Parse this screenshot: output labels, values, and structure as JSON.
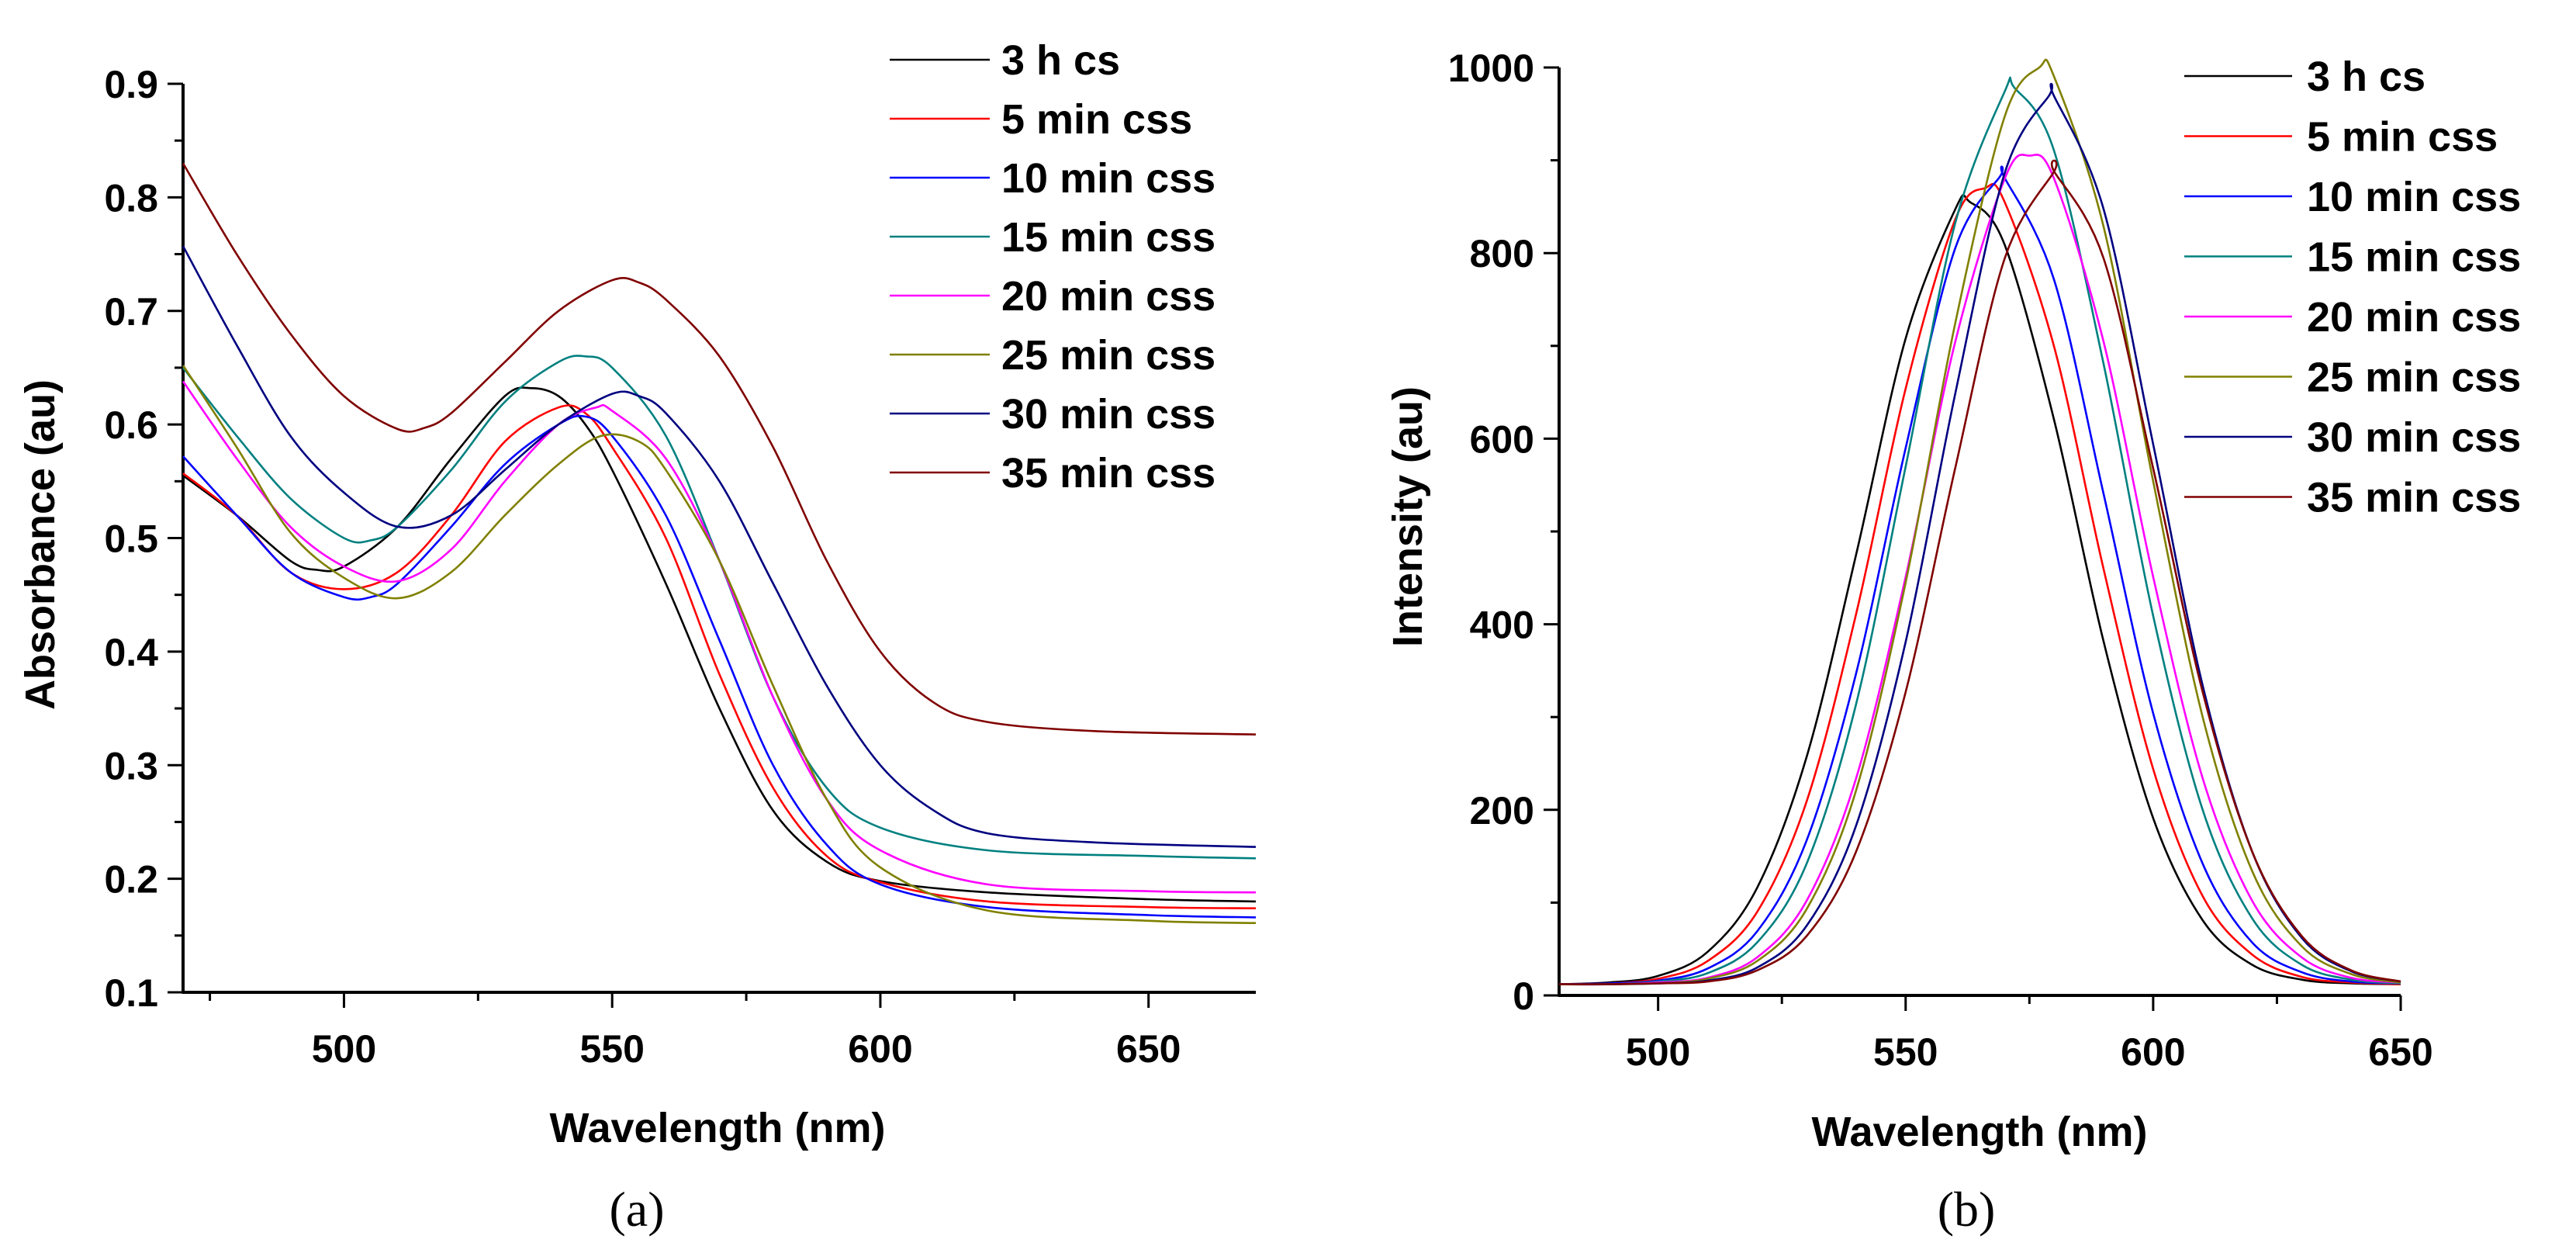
{
  "chart_data": [
    {
      "panel": "(a)",
      "type": "line",
      "xlabel": "Wavelength (nm)",
      "ylabel": "Absorbance (au)",
      "xlim": [
        470,
        670
      ],
      "ylim": [
        0.1,
        0.9
      ],
      "xticks": [
        500,
        550,
        600,
        650
      ],
      "yticks": [
        "0.1",
        "0.2",
        "0.3",
        "0.4",
        "0.5",
        "0.6",
        "0.7",
        "0.8",
        "0.9"
      ],
      "grid": false,
      "legend_position": "top-right",
      "series": [
        {
          "name": "3 h cs",
          "color": "#000000",
          "points": [
            [
              470,
              0.555
            ],
            [
              480,
              0.52
            ],
            [
              490,
              0.48
            ],
            [
              495,
              0.472
            ],
            [
              500,
              0.475
            ],
            [
              510,
              0.51
            ],
            [
              520,
              0.57
            ],
            [
              530,
              0.625
            ],
            [
              535,
              0.632
            ],
            [
              540,
              0.625
            ],
            [
              545,
              0.6
            ],
            [
              550,
              0.56
            ],
            [
              560,
              0.46
            ],
            [
              570,
              0.35
            ],
            [
              580,
              0.26
            ],
            [
              590,
              0.215
            ],
            [
              600,
              0.198
            ],
            [
              620,
              0.188
            ],
            [
              650,
              0.182
            ],
            [
              670,
              0.18
            ]
          ]
        },
        {
          "name": "5 min css",
          "color": "#ff0000",
          "points": [
            [
              470,
              0.557
            ],
            [
              480,
              0.52
            ],
            [
              490,
              0.47
            ],
            [
              500,
              0.455
            ],
            [
              510,
              0.47
            ],
            [
              520,
              0.52
            ],
            [
              530,
              0.585
            ],
            [
              540,
              0.615
            ],
            [
              545,
              0.61
            ],
            [
              550,
              0.58
            ],
            [
              560,
              0.5
            ],
            [
              570,
              0.38
            ],
            [
              580,
              0.28
            ],
            [
              590,
              0.22
            ],
            [
              600,
              0.197
            ],
            [
              620,
              0.18
            ],
            [
              650,
              0.175
            ],
            [
              670,
              0.174
            ]
          ]
        },
        {
          "name": "10 min css",
          "color": "#0000ff",
          "points": [
            [
              470,
              0.572
            ],
            [
              480,
              0.52
            ],
            [
              490,
              0.47
            ],
            [
              500,
              0.448
            ],
            [
              505,
              0.448
            ],
            [
              510,
              0.46
            ],
            [
              520,
              0.51
            ],
            [
              530,
              0.565
            ],
            [
              540,
              0.6
            ],
            [
              545,
              0.607
            ],
            [
              550,
              0.59
            ],
            [
              560,
              0.52
            ],
            [
              570,
              0.41
            ],
            [
              580,
              0.3
            ],
            [
              590,
              0.23
            ],
            [
              600,
              0.195
            ],
            [
              620,
              0.175
            ],
            [
              650,
              0.168
            ],
            [
              670,
              0.166
            ]
          ]
        },
        {
          "name": "15 min css",
          "color": "#008080",
          "points": [
            [
              470,
              0.65
            ],
            [
              480,
              0.59
            ],
            [
              490,
              0.535
            ],
            [
              500,
              0.5
            ],
            [
              505,
              0.498
            ],
            [
              510,
              0.51
            ],
            [
              520,
              0.56
            ],
            [
              530,
              0.62
            ],
            [
              540,
              0.655
            ],
            [
              545,
              0.66
            ],
            [
              550,
              0.65
            ],
            [
              560,
              0.59
            ],
            [
              570,
              0.48
            ],
            [
              580,
              0.36
            ],
            [
              590,
              0.28
            ],
            [
              600,
              0.245
            ],
            [
              620,
              0.225
            ],
            [
              650,
              0.22
            ],
            [
              670,
              0.218
            ]
          ]
        },
        {
          "name": "20 min css",
          "color": "#ff00ff",
          "points": [
            [
              470,
              0.638
            ],
            [
              480,
              0.57
            ],
            [
              490,
              0.51
            ],
            [
              500,
              0.475
            ],
            [
              510,
              0.462
            ],
            [
              520,
              0.49
            ],
            [
              530,
              0.55
            ],
            [
              540,
              0.6
            ],
            [
              547,
              0.615
            ],
            [
              550,
              0.612
            ],
            [
              560,
              0.57
            ],
            [
              570,
              0.48
            ],
            [
              580,
              0.36
            ],
            [
              590,
              0.27
            ],
            [
              600,
              0.225
            ],
            [
              620,
              0.195
            ],
            [
              650,
              0.189
            ],
            [
              670,
              0.188
            ]
          ]
        },
        {
          "name": "25 min css",
          "color": "#808000",
          "points": [
            [
              470,
              0.652
            ],
            [
              480,
              0.58
            ],
            [
              490,
              0.505
            ],
            [
              500,
              0.465
            ],
            [
              510,
              0.447
            ],
            [
              520,
              0.47
            ],
            [
              530,
              0.52
            ],
            [
              540,
              0.565
            ],
            [
              548,
              0.59
            ],
            [
              555,
              0.585
            ],
            [
              560,
              0.56
            ],
            [
              570,
              0.48
            ],
            [
              580,
              0.37
            ],
            [
              590,
              0.27
            ],
            [
              600,
              0.21
            ],
            [
              620,
              0.172
            ],
            [
              650,
              0.163
            ],
            [
              670,
              0.161
            ]
          ]
        },
        {
          "name": "30 min css",
          "color": "#000080",
          "points": [
            [
              470,
              0.757
            ],
            [
              480,
              0.67
            ],
            [
              490,
              0.59
            ],
            [
              500,
              0.54
            ],
            [
              510,
              0.51
            ],
            [
              520,
              0.52
            ],
            [
              530,
              0.56
            ],
            [
              540,
              0.6
            ],
            [
              550,
              0.627
            ],
            [
              555,
              0.625
            ],
            [
              560,
              0.61
            ],
            [
              570,
              0.55
            ],
            [
              580,
              0.46
            ],
            [
              590,
              0.37
            ],
            [
              600,
              0.3
            ],
            [
              610,
              0.26
            ],
            [
              620,
              0.24
            ],
            [
              640,
              0.232
            ],
            [
              670,
              0.228
            ]
          ]
        },
        {
          "name": "35 min css",
          "color": "#800000",
          "points": [
            [
              470,
              0.83
            ],
            [
              480,
              0.75
            ],
            [
              490,
              0.68
            ],
            [
              500,
              0.625
            ],
            [
              510,
              0.596
            ],
            [
              515,
              0.597
            ],
            [
              520,
              0.61
            ],
            [
              530,
              0.655
            ],
            [
              540,
              0.7
            ],
            [
              550,
              0.727
            ],
            [
              555,
              0.725
            ],
            [
              560,
              0.71
            ],
            [
              570,
              0.66
            ],
            [
              580,
              0.58
            ],
            [
              590,
              0.48
            ],
            [
              600,
              0.4
            ],
            [
              610,
              0.355
            ],
            [
              620,
              0.338
            ],
            [
              640,
              0.33
            ],
            [
              670,
              0.327
            ]
          ]
        }
      ]
    },
    {
      "panel": "(b)",
      "type": "line",
      "xlabel": "Wavelength (nm)",
      "ylabel": "Intensity (au)",
      "xlim": [
        480,
        650
      ],
      "ylim": [
        0,
        1000
      ],
      "xticks": [
        500,
        550,
        600,
        650
      ],
      "yticks": [
        "0",
        "200",
        "400",
        "600",
        "800",
        "1000"
      ],
      "grid": false,
      "legend_position": "top-right",
      "x": [
        480,
        490,
        500,
        510,
        520,
        530,
        540,
        550,
        560,
        570,
        580,
        590,
        600,
        610,
        620,
        630,
        640,
        650
      ],
      "series": [
        {
          "name": "3 h cs",
          "color": "#000000",
          "peak": [
            563,
            855
          ],
          "values": [
            12,
            14,
            21,
            47,
            116,
            257,
            475,
            708,
            847,
            809,
            620,
            381,
            191,
            81,
            33,
            17,
            13,
            12
          ]
        },
        {
          "name": "5 min css",
          "color": "#ff0000",
          "peak": [
            566,
            870
          ],
          "values": [
            12,
            13,
            18,
            37,
            90,
            209,
            411,
            654,
            836,
            855,
            699,
            459,
            244,
            107,
            44,
            20,
            14,
            12
          ]
        },
        {
          "name": "10 min css",
          "color": "#0000ff",
          "peak": [
            569,
            882
          ],
          "values": [
            12,
            13,
            16,
            29,
            69,
            167,
            347,
            590,
            805,
            881,
            771,
            540,
            304,
            142,
            57,
            25,
            15,
            13
          ]
        },
        {
          "name": "15 min css",
          "color": "#008080",
          "peak": [
            572,
            978
          ],
          "values": [
            12,
            12,
            15,
            24,
            57,
            142,
            314,
            570,
            832,
            974,
            910,
            680,
            409,
            200,
            83,
            33,
            17,
            13
          ]
        },
        {
          "name": "20 min css",
          "color": "#ff00ff",
          "peak": [
            575,
            905
          ],
          "values": [
            12,
            12,
            14,
            19,
            41,
            102,
            234,
            451,
            704,
            880,
            880,
            704,
            451,
            234,
            102,
            41,
            19,
            14
          ]
        },
        {
          "name": "25 min css",
          "color": "#808000",
          "peak": [
            577,
            1000
          ],
          "values": [
            12,
            12,
            13,
            18,
            37,
            93,
            221,
            445,
            724,
            947,
            990,
            828,
            554,
            300,
            134,
            53,
            23,
            14
          ]
        },
        {
          "name": "30 min css",
          "color": "#000080",
          "peak": [
            579,
            970
          ],
          "values": [
            12,
            12,
            13,
            16,
            30,
            75,
            183,
            381,
            648,
            886,
            969,
            847,
            594,
            334,
            155,
            62,
            26,
            15
          ]
        },
        {
          "name": "35 min css",
          "color": "#800000",
          "peak": [
            580,
            888
          ],
          "values": [
            12,
            12,
            13,
            15,
            27,
            64,
            155,
            327,
            568,
            794,
            888,
            794,
            568,
            327,
            155,
            64,
            27,
            15
          ]
        }
      ]
    }
  ]
}
